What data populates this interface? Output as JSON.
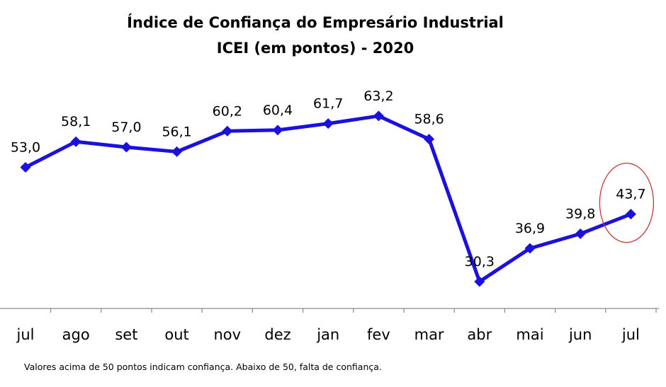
{
  "chart_data": {
    "type": "line",
    "title": "Índice de Confiança do Empresário Industrial",
    "subtitle": "ICEI (em pontos) - 2020",
    "categories": [
      "jul",
      "ago",
      "set",
      "out",
      "nov",
      "dez",
      "jan",
      "fev",
      "mar",
      "abr",
      "mai",
      "jun",
      "jul"
    ],
    "values": [
      53.0,
      58.1,
      57.0,
      56.1,
      60.2,
      60.4,
      61.7,
      63.2,
      58.6,
      30.3,
      36.9,
      39.8,
      43.7
    ],
    "value_labels": [
      "53,0",
      "58,1",
      "57,0",
      "56,1",
      "60,2",
      "60,4",
      "61,7",
      "63,2",
      "58,6",
      "30,3",
      "36,9",
      "39,8",
      "43,7"
    ],
    "highlighted_index": 12,
    "line_color": "#1a10e0",
    "highlight_color": "#c0393b",
    "grid": false
  },
  "footnote": "Valores acima de 50 pontos indicam confiança. Abaixo de 50, falta de confiança."
}
